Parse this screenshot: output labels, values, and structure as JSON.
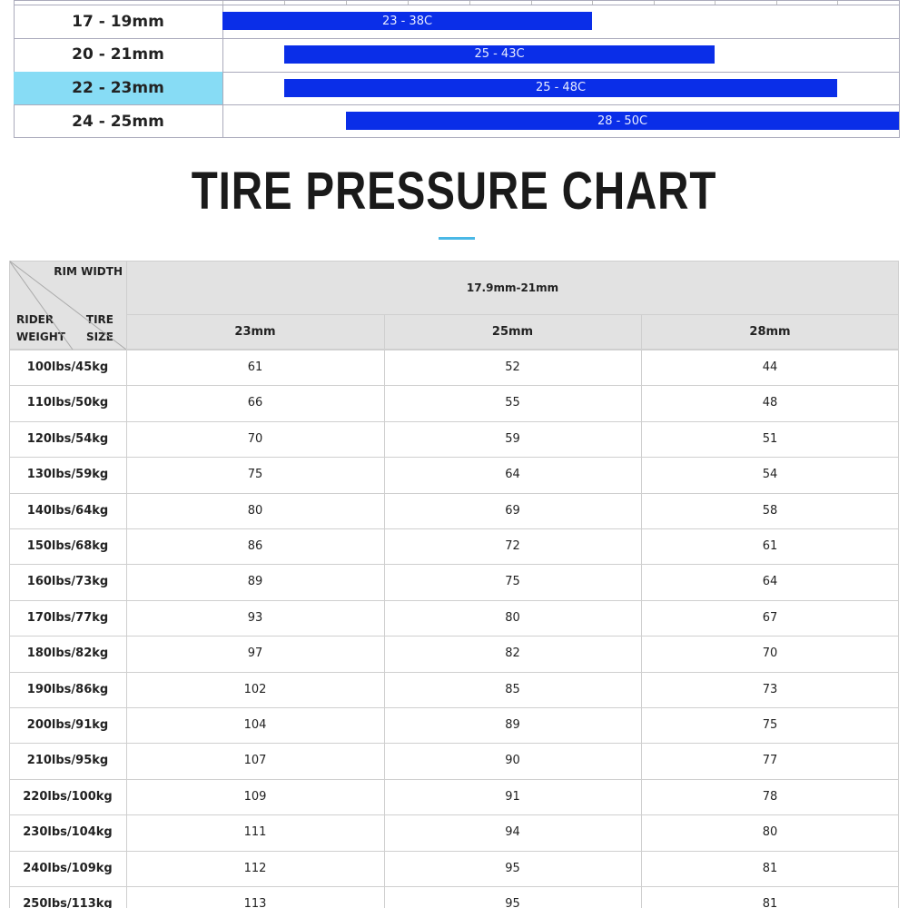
{
  "range_table": {
    "rows": [
      {
        "label": "17 - 19mm",
        "range": "23 - 38C"
      },
      {
        "label": "20 - 21mm",
        "range": "25 - 43C"
      },
      {
        "label": "22 - 23mm",
        "range": "25 - 48C"
      },
      {
        "label": "24 - 25mm",
        "range": "28 - 50C"
      }
    ]
  },
  "title": "TIRE PRESSURE CHART",
  "pressure_table": {
    "corner": {
      "rim_width": "RIM WIDTH",
      "rider_weight": "RIDER WEIGHT",
      "tire_size": "TIRE SIZE"
    },
    "rim_width": "17.9mm-21mm",
    "columns": [
      "23mm",
      "25mm",
      "28mm"
    ],
    "rows": [
      {
        "weight": "100lbs/45kg",
        "values": [
          61,
          52,
          44
        ]
      },
      {
        "weight": "110lbs/50kg",
        "values": [
          66,
          55,
          48
        ]
      },
      {
        "weight": "120lbs/54kg",
        "values": [
          70,
          59,
          51
        ]
      },
      {
        "weight": "130lbs/59kg",
        "values": [
          75,
          64,
          54
        ]
      },
      {
        "weight": "140lbs/64kg",
        "values": [
          80,
          69,
          58
        ]
      },
      {
        "weight": "150lbs/68kg",
        "values": [
          86,
          72,
          61
        ]
      },
      {
        "weight": "160lbs/73kg",
        "values": [
          89,
          75,
          64
        ]
      },
      {
        "weight": "170lbs/77kg",
        "values": [
          93,
          80,
          67
        ]
      },
      {
        "weight": "180lbs/82kg",
        "values": [
          97,
          82,
          70
        ]
      },
      {
        "weight": "190lbs/86kg",
        "values": [
          102,
          85,
          73
        ]
      },
      {
        "weight": "200lbs/91kg",
        "values": [
          104,
          89,
          75
        ]
      },
      {
        "weight": "210lbs/95kg",
        "values": [
          107,
          90,
          77
        ]
      },
      {
        "weight": "220lbs/100kg",
        "values": [
          109,
          91,
          78
        ]
      },
      {
        "weight": "230lbs/104kg",
        "values": [
          111,
          94,
          80
        ]
      },
      {
        "weight": "240lbs/109kg",
        "values": [
          112,
          95,
          81
        ]
      },
      {
        "weight": "250lbs/113kg",
        "values": [
          113,
          95,
          81
        ]
      }
    ]
  }
}
